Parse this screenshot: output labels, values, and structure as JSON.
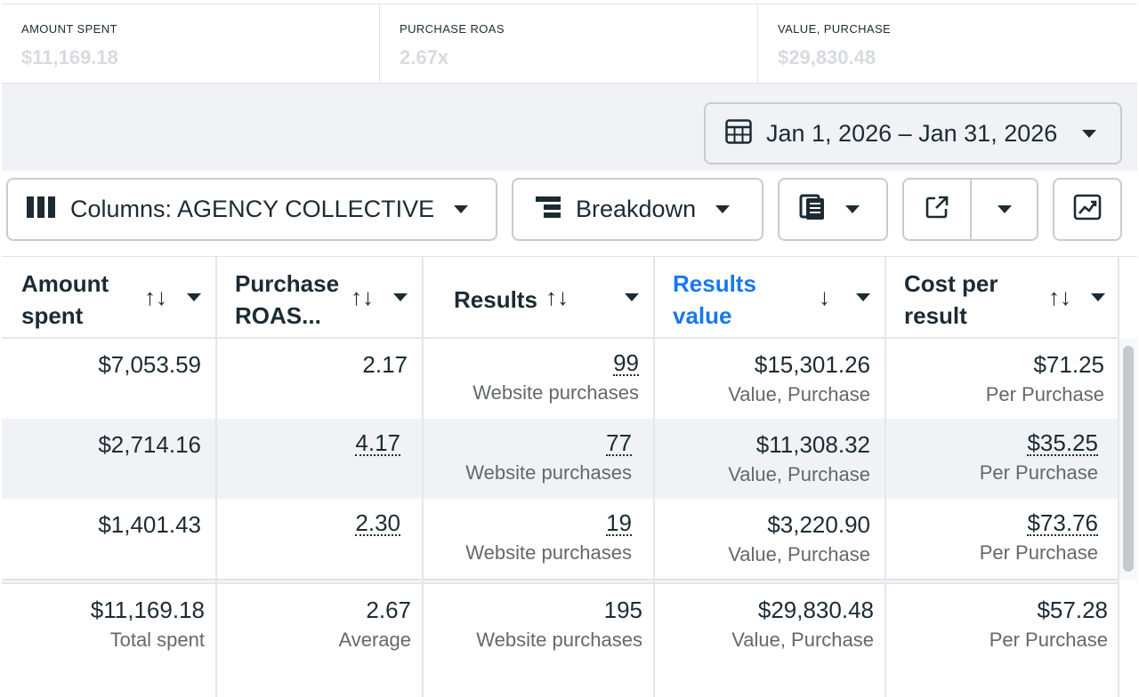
{
  "summary": [
    {
      "label": "AMOUNT SPENT",
      "value": "$11,169.18"
    },
    {
      "label": "PURCHASE ROAS",
      "value": "2.67x"
    },
    {
      "label": "VALUE, PURCHASE",
      "value": "$29,830.48"
    }
  ],
  "date_range": {
    "label": "Jan 1, 2026 – Jan 31, 2026",
    "icon": "calendar-icon"
  },
  "toolbar": {
    "columns_label": "Columns: AGENCY COLLECTIVE",
    "breakdown_label": "Breakdown",
    "icons": [
      "columns-icon",
      "breakdown-icon",
      "reports-icon",
      "export-icon",
      "chart-icon"
    ]
  },
  "table": {
    "headers": [
      {
        "line1": "Amount",
        "line2": "spent"
      },
      {
        "line1": "Purchase",
        "line2": "ROAS..."
      },
      {
        "line1": "Results",
        "line2": ""
      },
      {
        "line1": "Results",
        "line2": "value"
      },
      {
        "line1": "Cost per",
        "line2": "result"
      }
    ],
    "sort_glyph": "↑↓",
    "sorted_glyph": "↓",
    "rows": [
      {
        "amount": "$7,053.59",
        "roas": "2.17",
        "results": "99",
        "results_sub": "Website purchases",
        "value": "$15,301.26",
        "value_sub": "Value, Purchase",
        "cpr": "$71.25",
        "cpr_sub": "Per Purchase"
      },
      {
        "amount": "$2,714.16",
        "roas": "4.17",
        "results": "77",
        "results_sub": "Website purchases",
        "value": "$11,308.32",
        "value_sub": "Value, Purchase",
        "cpr": "$35.25",
        "cpr_sub": "Per Purchase"
      },
      {
        "amount": "$1,401.43",
        "roas": "2.30",
        "results": "19",
        "results_sub": "Website purchases",
        "value": "$3,220.90",
        "value_sub": "Value, Purchase",
        "cpr": "$73.76",
        "cpr_sub": "Per Purchase"
      }
    ],
    "totals": {
      "amount": "$11,169.18",
      "amount_sub": "Total spent",
      "roas": "2.67",
      "roas_sub": "Average",
      "results": "195",
      "results_sub": "Website purchases",
      "value": "$29,830.48",
      "value_sub": "Value, Purchase",
      "cpr": "$57.28",
      "cpr_sub": "Per Purchase"
    }
  },
  "colors": {
    "accent": "#1877f2",
    "text": "#1c2b33",
    "muted": "#65676b",
    "band": "#f0f2f5"
  }
}
